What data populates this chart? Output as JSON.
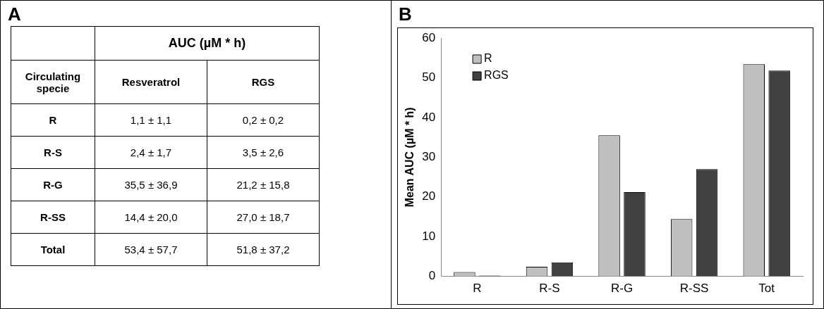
{
  "chart_data": [
    {
      "type": "other",
      "title": "A",
      "annotations": [
        "AUC (µM * h)",
        "Circulating specie",
        "Resveratrol",
        "RGS",
        "R",
        "1,1 ± 1,1",
        "0,2 ± 0,2",
        "R-S",
        "2,4 ± 1,7",
        "3,5 ± 2,6",
        "R-G",
        "35,5 ± 36,9",
        "21,2 ± 15,8",
        "R-SS",
        "14,4 ± 20,0",
        "27,0 ± 18,7",
        "Total",
        "53,4 ± 57,7",
        "51,8 ± 37,2"
      ]
    },
    {
      "type": "bar",
      "title": "B",
      "ylabel": "Mean AUC (µM * h)",
      "categories": [
        "R",
        "R-S",
        "R-G",
        "R-SS",
        "Tot"
      ],
      "series": [
        {
          "name": "R",
          "color": "#c0c0c0",
          "values": [
            1.1,
            2.4,
            35.5,
            14.4,
            53.4
          ]
        },
        {
          "name": "RGS",
          "color": "#404040",
          "values": [
            0.2,
            3.5,
            21.2,
            27.0,
            51.8
          ]
        }
      ],
      "ylim": [
        0,
        60
      ],
      "yticks": [
        0,
        10,
        20,
        30,
        40,
        50,
        60
      ],
      "grid": false,
      "legend": "top left"
    }
  ]
}
